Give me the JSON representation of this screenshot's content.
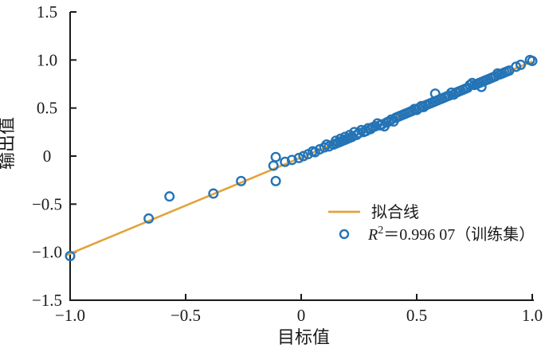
{
  "figure": {
    "background": "#ffffff",
    "axis_color": "#1a1a1a",
    "text_color": "#1a1a1a"
  },
  "chart_data": {
    "type": "scatter",
    "title": "",
    "xlabel": "目标值",
    "ylabel": "输出值",
    "xlim": [
      -1.0,
      1.0
    ],
    "ylim": [
      -1.5,
      1.5
    ],
    "grid": false,
    "x_ticks": [
      -1.0,
      -0.5,
      0,
      0.5,
      1.0
    ],
    "x_tick_labels": [
      "−1.0",
      "−0.5",
      "0",
      "0.5",
      "1.0"
    ],
    "y_ticks": [
      -1.5,
      -1.0,
      -0.5,
      0,
      0.5,
      1.0,
      1.5
    ],
    "y_tick_labels": [
      "−1.5",
      "−1.0",
      "−0.5",
      "0",
      "0.5",
      "1.0",
      "1.5"
    ],
    "series": [
      {
        "name": "拟合线",
        "type": "line",
        "color": "#E2A33C",
        "x": [
          -1.02,
          1.0
        ],
        "y": [
          -1.035,
          0.985
        ]
      },
      {
        "name": "R²＝0.996 07（训练集）",
        "type": "scatter",
        "marker": "open-circle",
        "color": "#2474B6",
        "r_squared": "0.996 07",
        "dataset": "训练集",
        "points": [
          [
            -1.0,
            -1.04
          ],
          [
            -0.66,
            -0.65
          ],
          [
            -0.57,
            -0.42
          ],
          [
            -0.38,
            -0.39
          ],
          [
            -0.26,
            -0.26
          ],
          [
            -0.11,
            -0.26
          ],
          [
            -0.12,
            -0.1
          ],
          [
            -0.11,
            -0.01
          ],
          [
            -0.07,
            -0.06
          ],
          [
            -0.04,
            -0.04
          ],
          [
            -0.01,
            -0.02
          ],
          [
            0.01,
            0.0
          ],
          [
            0.03,
            0.02
          ],
          [
            0.05,
            0.05
          ],
          [
            0.06,
            0.04
          ],
          [
            0.08,
            0.07
          ],
          [
            0.1,
            0.09
          ],
          [
            0.11,
            0.12
          ],
          [
            0.12,
            0.1
          ],
          [
            0.14,
            0.12
          ],
          [
            0.15,
            0.13
          ],
          [
            0.15,
            0.16
          ],
          [
            0.16,
            0.14
          ],
          [
            0.17,
            0.15
          ],
          [
            0.17,
            0.18
          ],
          [
            0.18,
            0.16
          ],
          [
            0.19,
            0.17
          ],
          [
            0.19,
            0.2
          ],
          [
            0.2,
            0.18
          ],
          [
            0.21,
            0.19
          ],
          [
            0.21,
            0.22
          ],
          [
            0.22,
            0.2
          ],
          [
            0.23,
            0.25
          ],
          [
            0.24,
            0.22
          ],
          [
            0.25,
            0.24
          ],
          [
            0.26,
            0.27
          ],
          [
            0.27,
            0.25
          ],
          [
            0.28,
            0.26
          ],
          [
            0.29,
            0.29
          ],
          [
            0.3,
            0.28
          ],
          [
            0.31,
            0.3
          ],
          [
            0.32,
            0.31
          ],
          [
            0.33,
            0.34
          ],
          [
            0.34,
            0.32
          ],
          [
            0.35,
            0.33
          ],
          [
            0.36,
            0.31
          ],
          [
            0.37,
            0.35
          ],
          [
            0.38,
            0.36
          ],
          [
            0.39,
            0.38
          ],
          [
            0.4,
            0.36
          ],
          [
            0.41,
            0.4
          ],
          [
            0.42,
            0.41
          ],
          [
            0.43,
            0.42
          ],
          [
            0.44,
            0.43
          ],
          [
            0.45,
            0.44
          ],
          [
            0.46,
            0.45
          ],
          [
            0.47,
            0.46
          ],
          [
            0.48,
            0.47
          ],
          [
            0.49,
            0.49
          ],
          [
            0.5,
            0.48
          ],
          [
            0.51,
            0.5
          ],
          [
            0.52,
            0.52
          ],
          [
            0.53,
            0.51
          ],
          [
            0.54,
            0.53
          ],
          [
            0.55,
            0.54
          ],
          [
            0.56,
            0.55
          ],
          [
            0.57,
            0.56
          ],
          [
            0.58,
            0.65
          ],
          [
            0.58,
            0.57
          ],
          [
            0.59,
            0.58
          ],
          [
            0.6,
            0.59
          ],
          [
            0.61,
            0.6
          ],
          [
            0.62,
            0.61
          ],
          [
            0.63,
            0.62
          ],
          [
            0.64,
            0.63
          ],
          [
            0.65,
            0.66
          ],
          [
            0.66,
            0.64
          ],
          [
            0.67,
            0.66
          ],
          [
            0.68,
            0.67
          ],
          [
            0.69,
            0.68
          ],
          [
            0.7,
            0.69
          ],
          [
            0.71,
            0.7
          ],
          [
            0.72,
            0.71
          ],
          [
            0.73,
            0.74
          ],
          [
            0.74,
            0.76
          ],
          [
            0.75,
            0.74
          ],
          [
            0.76,
            0.75
          ],
          [
            0.77,
            0.76
          ],
          [
            0.78,
            0.72
          ],
          [
            0.78,
            0.77
          ],
          [
            0.79,
            0.78
          ],
          [
            0.8,
            0.79
          ],
          [
            0.81,
            0.8
          ],
          [
            0.82,
            0.81
          ],
          [
            0.83,
            0.82
          ],
          [
            0.84,
            0.83
          ],
          [
            0.85,
            0.86
          ],
          [
            0.86,
            0.85
          ],
          [
            0.87,
            0.86
          ],
          [
            0.88,
            0.87
          ],
          [
            0.89,
            0.88
          ],
          [
            0.9,
            0.89
          ],
          [
            0.93,
            0.93
          ],
          [
            0.95,
            0.95
          ],
          [
            0.99,
            1.0
          ],
          [
            1.0,
            0.99
          ]
        ]
      }
    ],
    "legend": {
      "position": "lower-right",
      "border": false,
      "entries": [
        {
          "swatch": "line",
          "label": "拟合线"
        },
        {
          "swatch": "open-circle",
          "label": "R²＝0.996 07（训练集）",
          "label_segments": [
            {
              "text": "R",
              "italic": true
            },
            {
              "text": "2",
              "sup": true
            },
            {
              "text": "＝0.996 07（训练集）"
            }
          ]
        }
      ]
    }
  }
}
